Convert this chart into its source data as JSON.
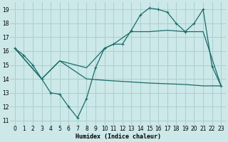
{
  "xlabel": "Humidex (Indice chaleur)",
  "bg_color": "#cce8e8",
  "grid_color": "#aacfcf",
  "line_color": "#1a6b6b",
  "xlim": [
    -0.5,
    23.5
  ],
  "ylim": [
    10.7,
    19.5
  ],
  "yticks": [
    11,
    12,
    13,
    14,
    15,
    16,
    17,
    18,
    19
  ],
  "xticks": [
    0,
    1,
    2,
    3,
    4,
    5,
    6,
    7,
    8,
    9,
    10,
    11,
    12,
    13,
    14,
    15,
    16,
    17,
    18,
    19,
    20,
    21,
    22,
    23
  ],
  "line1_x": [
    0,
    1,
    2,
    3,
    4,
    5,
    6,
    7,
    8,
    9,
    10,
    11,
    12,
    13,
    14,
    15,
    16,
    17,
    18,
    19,
    20,
    21,
    22,
    23
  ],
  "line1_y": [
    16.2,
    15.7,
    15.0,
    14.0,
    13.0,
    12.9,
    12.0,
    11.2,
    12.6,
    14.8,
    16.2,
    16.5,
    16.5,
    17.5,
    18.6,
    19.1,
    19.0,
    18.8,
    18.0,
    17.4,
    18.0,
    19.0,
    14.9,
    13.5
  ],
  "line2_x": [
    0,
    3,
    5,
    8,
    10,
    11,
    13,
    15,
    17,
    19,
    21,
    23
  ],
  "line2_y": [
    16.2,
    14.0,
    15.3,
    14.8,
    16.2,
    16.5,
    17.4,
    17.4,
    17.5,
    17.4,
    17.4,
    13.5
  ],
  "line3_x": [
    0,
    3,
    5,
    8,
    10,
    15,
    19,
    21,
    23
  ],
  "line3_y": [
    16.2,
    14.0,
    15.3,
    14.0,
    13.9,
    13.7,
    13.6,
    13.5,
    13.5
  ]
}
